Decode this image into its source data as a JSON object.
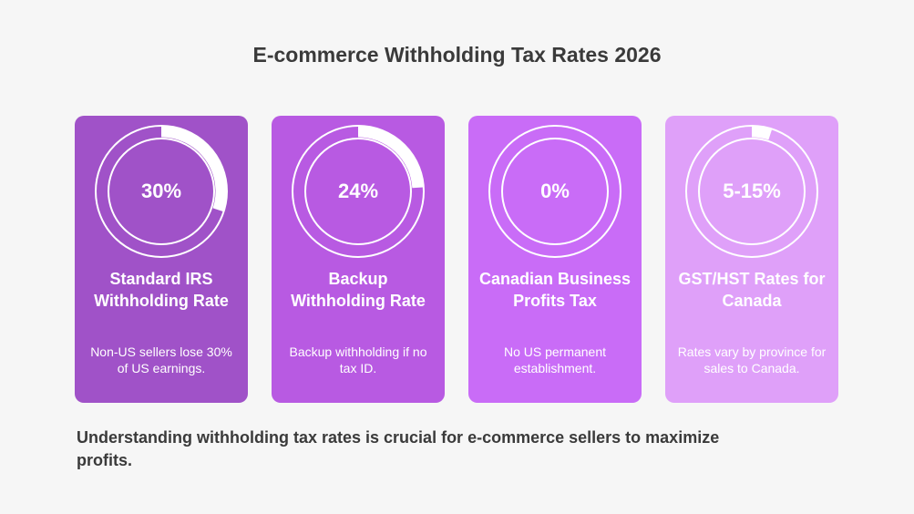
{
  "title": "E-commerce Withholding Tax Rates 2026",
  "cards": [
    {
      "value": "30%",
      "fill": 0.3,
      "label": "Standard IRS Withholding Rate",
      "description": "Non-US sellers lose 30% of US earnings.",
      "color": "#a052c8"
    },
    {
      "value": "24%",
      "fill": 0.24,
      "label": "Backup Withholding Rate",
      "description": "Backup withholding if no tax ID.",
      "color": "#b85ae2"
    },
    {
      "value": "0%",
      "fill": 0,
      "label": "Canadian Business Profits Tax",
      "description": "No US permanent establishment.",
      "color": "#c96cf7"
    },
    {
      "value": "5-15%",
      "fill": 0.05,
      "label": "GST/HST Rates for Canada",
      "description": "Rates vary by province for sales to Canada.",
      "color": "#dfa0f9"
    }
  ],
  "footer": "Understanding withholding tax rates is crucial for e-commerce sellers to maximize profits."
}
